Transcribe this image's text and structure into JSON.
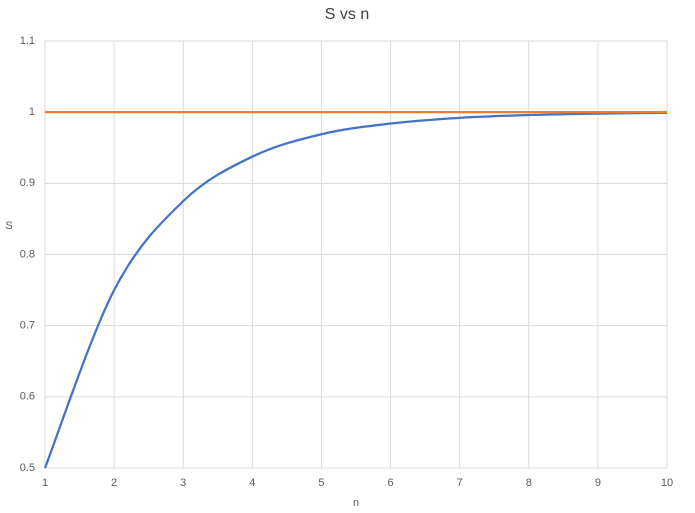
{
  "chart_data": {
    "type": "line",
    "title": "S vs n",
    "x_label": "n",
    "y_label": "S",
    "x": [
      1,
      2,
      3,
      4,
      5,
      6,
      7,
      8,
      9,
      10
    ],
    "series": [
      {
        "color": "#4472c4",
        "values": [
          0.5,
          0.75,
          0.875,
          0.9375,
          0.969,
          0.984,
          0.992,
          0.996,
          0.998,
          0.999
        ]
      },
      {
        "color": "#ed7d31",
        "values": [
          1,
          1,
          1,
          1,
          1,
          1,
          1,
          1,
          1,
          1
        ]
      }
    ],
    "xlim": [
      1,
      10
    ],
    "xticks": [
      1,
      2,
      3,
      4,
      5,
      6,
      7,
      8,
      9,
      10
    ],
    "ylim": [
      0.5,
      1.1
    ],
    "yticks": [
      0.5,
      0.6,
      0.7,
      0.8,
      0.9,
      1,
      1.1
    ],
    "grid": true,
    "smooth": true
  }
}
